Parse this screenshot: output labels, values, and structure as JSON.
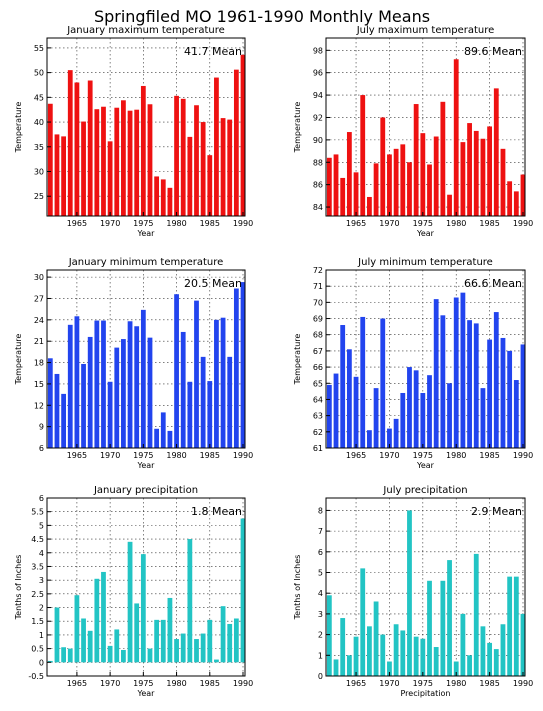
{
  "title": "Springfiled MO   1961-1990  Monthly Means",
  "chart_data": [
    {
      "type": "bar",
      "title": "January maximum temperature",
      "xlabel": "Year",
      "ylabel": "Temperature",
      "mean_label": "41.7  Mean",
      "color": "#ee1111",
      "xlim": [
        1960.5,
        1990.3
      ],
      "ylim": [
        21,
        57
      ],
      "x_ticks": [
        1965,
        1970,
        1975,
        1980,
        1985,
        1990
      ],
      "y_ticks": [
        25,
        30,
        35,
        40,
        45,
        50,
        55
      ],
      "grid": true,
      "categories": [
        1961,
        1962,
        1963,
        1964,
        1965,
        1966,
        1967,
        1968,
        1969,
        1970,
        1971,
        1972,
        1973,
        1974,
        1975,
        1976,
        1977,
        1978,
        1979,
        1980,
        1981,
        1982,
        1983,
        1984,
        1985,
        1986,
        1987,
        1988,
        1989,
        1990
      ],
      "values": [
        43.7,
        37.5,
        37.1,
        50.5,
        48.0,
        40.1,
        48.4,
        42.6,
        43.1,
        36.1,
        42.9,
        44.4,
        42.3,
        42.5,
        47.3,
        43.6,
        29.0,
        28.4,
        26.7,
        45.3,
        44.7,
        37.0,
        43.4,
        40.0,
        33.3,
        49.0,
        40.8,
        40.5,
        50.6,
        53.6
      ]
    },
    {
      "type": "bar",
      "title": "July maximum temperature",
      "xlabel": "Year",
      "ylabel": "Temperature",
      "mean_label": "89.6  Mean",
      "color": "#ee1111",
      "xlim": [
        1960.5,
        1990.3
      ],
      "ylim": [
        83.2,
        99.1
      ],
      "x_ticks": [
        1965,
        1970,
        1975,
        1980,
        1985,
        1990
      ],
      "y_ticks": [
        84,
        86,
        88,
        90,
        92,
        94,
        96,
        98
      ],
      "grid": true,
      "categories": [
        1961,
        1962,
        1963,
        1964,
        1965,
        1966,
        1967,
        1968,
        1969,
        1970,
        1971,
        1972,
        1973,
        1974,
        1975,
        1976,
        1977,
        1978,
        1979,
        1980,
        1981,
        1982,
        1983,
        1984,
        1985,
        1986,
        1987,
        1988,
        1989,
        1990
      ],
      "values": [
        88.4,
        88.7,
        86.6,
        90.7,
        87.1,
        94.0,
        84.9,
        87.9,
        92.0,
        88.7,
        89.2,
        89.6,
        88.0,
        93.2,
        90.6,
        87.8,
        90.3,
        93.4,
        85.1,
        97.2,
        89.8,
        91.5,
        90.8,
        90.1,
        91.2,
        94.6,
        89.2,
        86.3,
        85.4,
        86.9
      ]
    },
    {
      "type": "bar",
      "title": "January minimum temperature",
      "xlabel": "Year",
      "ylabel": "Temperature",
      "mean_label": "20.5  Mean",
      "color": "#2244ee",
      "xlim": [
        1960.5,
        1990.3
      ],
      "ylim": [
        6,
        31
      ],
      "x_ticks": [
        1965,
        1970,
        1975,
        1980,
        1985,
        1990
      ],
      "y_ticks": [
        6,
        9,
        12,
        15,
        18,
        21,
        24,
        27,
        30
      ],
      "grid": true,
      "categories": [
        1961,
        1962,
        1963,
        1964,
        1965,
        1966,
        1967,
        1968,
        1969,
        1970,
        1971,
        1972,
        1973,
        1974,
        1975,
        1976,
        1977,
        1978,
        1979,
        1980,
        1981,
        1982,
        1983,
        1984,
        1985,
        1986,
        1987,
        1988,
        1989,
        1990
      ],
      "values": [
        18.6,
        16.4,
        13.6,
        23.3,
        24.5,
        17.8,
        21.6,
        23.9,
        23.9,
        15.3,
        20.1,
        21.3,
        23.8,
        23.1,
        25.4,
        21.5,
        8.7,
        11.0,
        8.4,
        27.6,
        22.3,
        15.3,
        26.7,
        18.8,
        15.4,
        24.0,
        24.3,
        18.8,
        28.4,
        29.3
      ]
    },
    {
      "type": "bar",
      "title": "July minimum temperature",
      "xlabel": "Year",
      "ylabel": "Temperature",
      "mean_label": "66.6  Mean",
      "color": "#2244ee",
      "xlim": [
        1960.5,
        1990.3
      ],
      "ylim": [
        61,
        72
      ],
      "x_ticks": [
        1965,
        1970,
        1975,
        1980,
        1985,
        1990
      ],
      "y_ticks": [
        61,
        62,
        63,
        64,
        65,
        66,
        67,
        68,
        69,
        70,
        71,
        72
      ],
      "grid": true,
      "categories": [
        1961,
        1962,
        1963,
        1964,
        1965,
        1966,
        1967,
        1968,
        1969,
        1970,
        1971,
        1972,
        1973,
        1974,
        1975,
        1976,
        1977,
        1978,
        1979,
        1980,
        1981,
        1982,
        1983,
        1984,
        1985,
        1986,
        1987,
        1988,
        1989,
        1990
      ],
      "values": [
        64.9,
        65.6,
        68.6,
        67.1,
        65.4,
        69.1,
        62.1,
        64.7,
        69.0,
        62.2,
        62.8,
        64.4,
        66.0,
        65.8,
        64.4,
        65.5,
        70.2,
        69.2,
        65.0,
        70.3,
        70.6,
        68.9,
        68.7,
        64.7,
        67.7,
        69.4,
        67.8,
        67.0,
        65.2,
        67.4
      ]
    },
    {
      "type": "bar",
      "title": "January precipitation",
      "xlabel": "Year",
      "ylabel": "Tenths of Inches",
      "mean_label": "1.8  Mean",
      "color": "#22c4c4",
      "xlim": [
        1960.5,
        1990.3
      ],
      "ylim": [
        -0.5,
        6
      ],
      "x_ticks": [
        1965,
        1970,
        1975,
        1980,
        1985,
        1990
      ],
      "y_ticks": [
        -0.5,
        0,
        0.5,
        1,
        1.5,
        2,
        2.5,
        3,
        3.5,
        4,
        4.5,
        5,
        5.5,
        6
      ],
      "grid": true,
      "categories": [
        1961,
        1962,
        1963,
        1964,
        1965,
        1966,
        1967,
        1968,
        1969,
        1970,
        1971,
        1972,
        1973,
        1974,
        1975,
        1976,
        1977,
        1978,
        1979,
        1980,
        1981,
        1982,
        1983,
        1984,
        1985,
        1986,
        1987,
        1988,
        1989,
        1990
      ],
      "values": [
        0.05,
        2.0,
        0.55,
        0.5,
        2.45,
        1.6,
        1.15,
        3.05,
        3.3,
        0.6,
        1.2,
        0.45,
        4.4,
        2.15,
        3.95,
        0.5,
        1.55,
        1.55,
        2.35,
        0.85,
        1.05,
        4.5,
        0.85,
        1.05,
        1.55,
        0.1,
        2.05,
        1.4,
        1.6,
        5.25
      ]
    },
    {
      "type": "bar",
      "title": "July precipitation",
      "xlabel": "Precipitation",
      "ylabel": "Tenths of Inches",
      "mean_label": "2.9  Mean",
      "color": "#22c4c4",
      "xlim": [
        1960.5,
        1990.3
      ],
      "ylim": [
        0,
        8.6
      ],
      "x_ticks": [
        1965,
        1970,
        1975,
        1980,
        1985,
        1990
      ],
      "y_ticks": [
        0,
        1,
        2,
        3,
        4,
        5,
        6,
        7,
        8
      ],
      "grid": true,
      "categories": [
        1961,
        1962,
        1963,
        1964,
        1965,
        1966,
        1967,
        1968,
        1969,
        1970,
        1971,
        1972,
        1973,
        1974,
        1975,
        1976,
        1977,
        1978,
        1979,
        1980,
        1981,
        1982,
        1983,
        1984,
        1985,
        1986,
        1987,
        1988,
        1989,
        1990
      ],
      "values": [
        3.9,
        0.8,
        2.8,
        1.0,
        1.9,
        5.2,
        2.4,
        3.6,
        2.0,
        0.7,
        2.5,
        2.2,
        8.0,
        1.9,
        1.8,
        4.6,
        1.4,
        4.6,
        5.6,
        0.7,
        3.0,
        1.0,
        5.9,
        2.4,
        1.6,
        1.3,
        2.5,
        4.8,
        4.8,
        3.0
      ]
    }
  ]
}
